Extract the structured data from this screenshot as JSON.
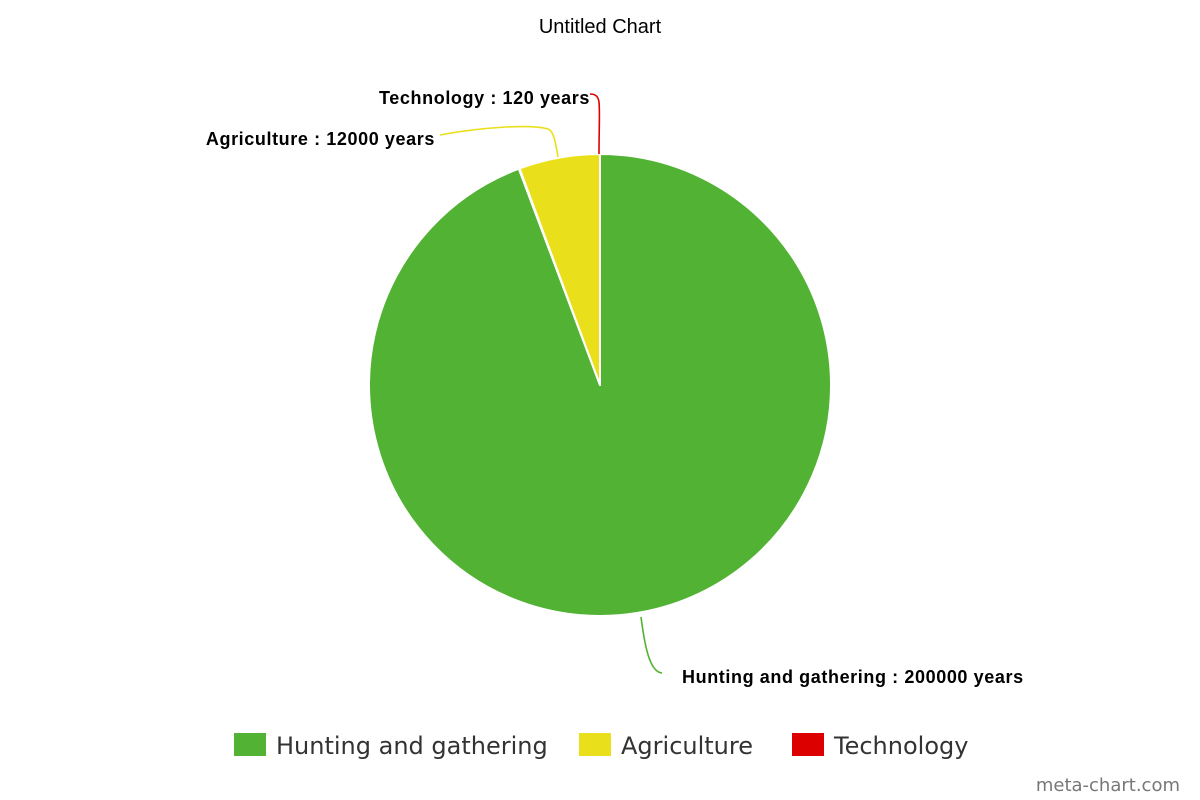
{
  "chart_data": {
    "type": "pie",
    "title": "Untitled Chart",
    "slices": [
      {
        "category": "Hunting and gathering",
        "value": 200000,
        "label": "Hunting and gathering : 200000 years",
        "color": "#52b233"
      },
      {
        "category": "Technology",
        "value": 120,
        "label": "Technology : 120 years",
        "color": "#dd0000"
      },
      {
        "category": "Agriculture",
        "value": 12000,
        "label": "Agriculture : 12000 years",
        "color": "#eadf1b"
      }
    ],
    "legend": {
      "placement": "bottom",
      "entries": [
        {
          "name": "Hunting and gathering",
          "color": "#52b233"
        },
        {
          "name": "Agriculture",
          "color": "#eadf1b"
        },
        {
          "name": "Technology",
          "color": "#dd0000"
        }
      ]
    }
  },
  "watermark": "meta-chart.com"
}
